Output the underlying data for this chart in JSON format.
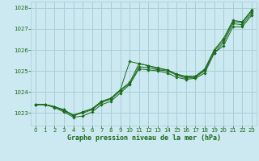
{
  "bg_color": "#cce8f0",
  "grid_color": "#a8cfd8",
  "line_color": "#1a6b1a",
  "marker_color": "#1a6b1a",
  "xlabel": "Graphe pression niveau de la mer (hPa)",
  "xlabel_color": "#1a6b1a",
  "xlim": [
    -0.5,
    23.5
  ],
  "ylim": [
    1022.4,
    1028.3
  ],
  "yticks": [
    1023,
    1024,
    1025,
    1026,
    1027,
    1028
  ],
  "xticks": [
    0,
    1,
    2,
    3,
    4,
    5,
    6,
    7,
    8,
    9,
    10,
    11,
    12,
    13,
    14,
    15,
    16,
    17,
    18,
    19,
    20,
    21,
    22,
    23
  ],
  "line1_x": [
    0,
    1,
    2,
    3,
    4,
    5,
    6,
    7,
    8,
    9,
    10,
    11,
    12,
    13,
    14,
    15,
    16,
    17,
    18,
    19,
    20,
    21,
    22,
    23
  ],
  "line1_y": [
    1023.4,
    1023.4,
    1023.3,
    1023.15,
    1022.85,
    1023.05,
    1023.2,
    1023.55,
    1023.7,
    1024.1,
    1024.45,
    1025.35,
    1025.25,
    1025.1,
    1025.05,
    1024.85,
    1024.7,
    1024.75,
    1025.05,
    1025.95,
    1026.45,
    1027.35,
    1027.3,
    1027.85
  ],
  "line2_x": [
    0,
    1,
    2,
    3,
    4,
    5,
    6,
    7,
    8,
    9,
    10,
    11,
    12,
    13,
    14,
    15,
    16,
    17,
    18,
    19,
    20,
    21,
    22,
    23
  ],
  "line2_y": [
    1023.4,
    1023.4,
    1023.3,
    1023.1,
    1022.9,
    1023.0,
    1023.15,
    1023.5,
    1023.65,
    1024.05,
    1024.4,
    1025.2,
    1025.15,
    1025.05,
    1025.0,
    1024.8,
    1024.65,
    1024.7,
    1025.0,
    1025.85,
    1026.35,
    1027.25,
    1027.2,
    1027.75
  ],
  "line3_x": [
    0,
    1,
    2,
    3,
    4,
    5,
    6,
    7,
    8,
    9,
    10,
    11,
    12,
    13,
    14,
    15,
    16,
    17,
    18,
    19,
    20,
    21,
    22,
    23
  ],
  "line3_y": [
    1023.4,
    1023.4,
    1023.25,
    1023.05,
    1022.8,
    1022.85,
    1023.05,
    1023.4,
    1023.55,
    1023.95,
    1024.35,
    1025.1,
    1025.05,
    1025.0,
    1024.9,
    1024.7,
    1024.6,
    1024.65,
    1024.9,
    1025.85,
    1026.2,
    1027.1,
    1027.1,
    1027.65
  ],
  "line4_x": [
    0,
    1,
    2,
    3,
    4,
    5,
    6,
    7,
    8,
    9,
    10,
    11,
    12,
    13,
    14,
    15,
    16,
    17,
    18,
    19,
    20,
    21,
    22,
    23
  ],
  "line4_y": [
    1023.4,
    1023.4,
    1023.3,
    1023.15,
    1022.9,
    1023.05,
    1023.2,
    1023.55,
    1023.7,
    1024.1,
    1025.45,
    1025.35,
    1025.25,
    1025.15,
    1025.05,
    1024.85,
    1024.75,
    1024.75,
    1025.1,
    1026.0,
    1026.55,
    1027.4,
    1027.35,
    1027.9
  ]
}
